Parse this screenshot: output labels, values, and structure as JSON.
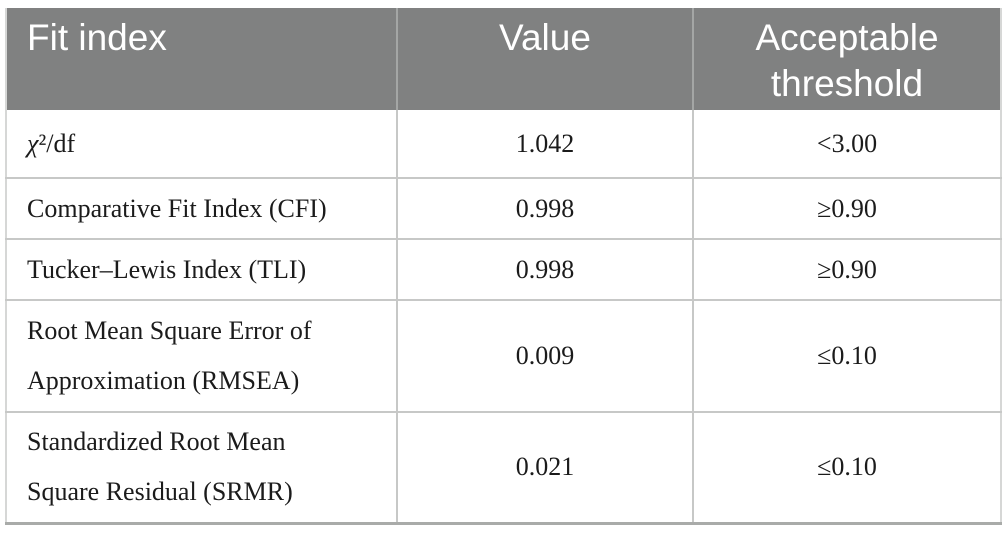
{
  "table": {
    "columns": [
      {
        "label": "Fit index"
      },
      {
        "label": "Value"
      },
      {
        "label": "Acceptable threshold"
      }
    ],
    "rows": [
      {
        "index_chi": "χ",
        "index_rest": "²/df",
        "value": "1.042",
        "threshold": "<3.00"
      },
      {
        "index": "Comparative Fit Index (CFI)",
        "value": "0.998",
        "threshold": "≥0.90"
      },
      {
        "index": "Tucker–Lewis Index (TLI)",
        "value": "0.998",
        "threshold": "≥0.90"
      },
      {
        "index": "Root Mean Square Error of\nApproximation (RMSEA)",
        "value": "0.009",
        "threshold": "≤0.10"
      },
      {
        "index": "Standardized Root Mean\nSquare Residual (SRMR)",
        "value": "0.021",
        "threshold": "≤0.10"
      }
    ],
    "colors": {
      "header_bg": "#808181",
      "header_text": "#ffffff",
      "header_divider": "#a4a6a5",
      "body_text": "#1b1b1b",
      "row_rule": "#c7c8c7",
      "outer_bottom_rule": "#a9aba9"
    }
  }
}
